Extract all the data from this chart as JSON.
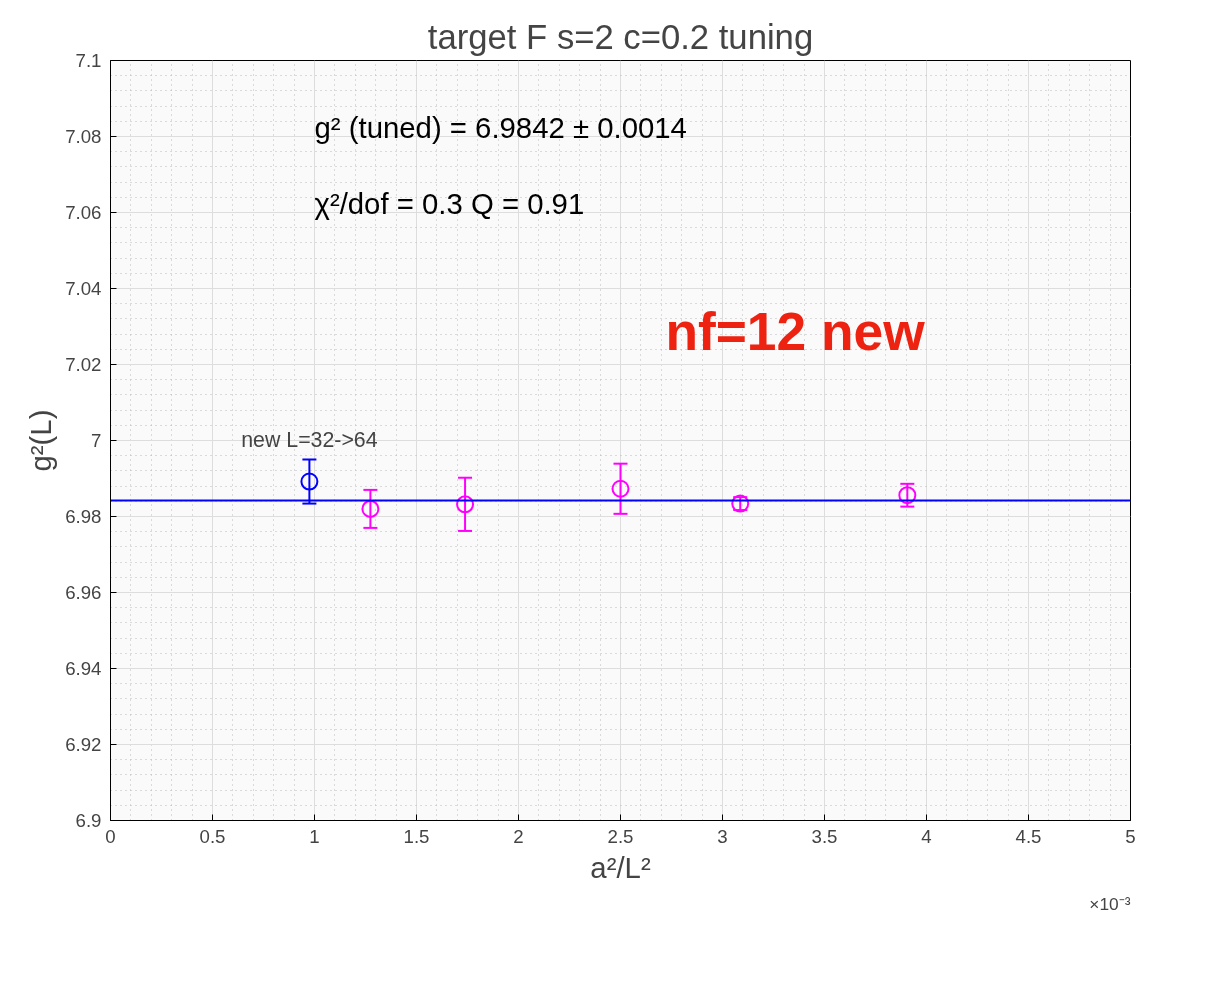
{
  "chart_data": {
    "type": "scatter",
    "title": "target F s=2 c=0.2 tuning",
    "xlabel": "a²/L²",
    "ylabel": "g²(L)",
    "xlim": [
      0,
      5
    ],
    "ylim": [
      6.9,
      7.1
    ],
    "xticks": [
      0,
      0.5,
      1,
      1.5,
      2,
      2.5,
      3,
      3.5,
      4,
      4.5,
      5
    ],
    "yticks": [
      6.9,
      6.92,
      6.94,
      6.96,
      6.98,
      7,
      7.02,
      7.04,
      7.06,
      7.08,
      7.1
    ],
    "grid": true,
    "series": [
      {
        "color": "#0000ff",
        "marker": "circle",
        "x": [
          0.975
        ],
        "values": [
          6.9892
        ],
        "errors": [
          0.0058
        ]
      },
      {
        "color": "#ff00ff",
        "marker": "circle",
        "x": [
          1.274,
          1.738,
          2.5,
          3.087,
          3.906
        ],
        "values": [
          6.982,
          6.9832,
          6.9873,
          6.9834,
          6.9856
        ],
        "errors": [
          0.005,
          0.007,
          0.0066,
          0.0017,
          0.003
        ]
      },
      {
        "type": "line",
        "color": "#0000ff",
        "marker": "none",
        "x": [
          0,
          5
        ],
        "values": [
          6.9842,
          6.9842
        ]
      }
    ],
    "annotations": [
      "g² (tuned) =  6.9842 ± 0.0014",
      "χ²/dof = 0.3 Q = 0.91",
      "nf=12 new",
      {
        "text": "new L=32->64",
        "x": 0.975,
        "y": 6.9892
      },
      "×10⁻³"
    ]
  }
}
